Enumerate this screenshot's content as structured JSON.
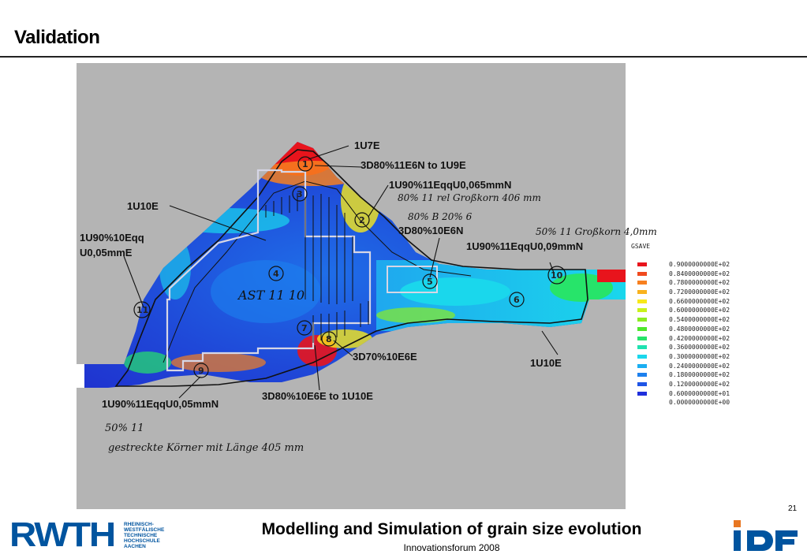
{
  "slide": {
    "title": "Validation",
    "page_number": "21",
    "footer_title": "Modelling and Simulation of grain size evolution",
    "footer_subtitle": "Innovationsforum 2008"
  },
  "logos": {
    "rwth_mark": "RWTH",
    "rwth_lines": [
      "RHEINISCH-",
      "WESTFÄLISCHE",
      "TECHNISCHE",
      "HOCHSCHULE",
      "AACHEN"
    ],
    "ibf_mark": "ibf"
  },
  "figure": {
    "labels": [
      {
        "id": "l1",
        "text": "1U7E"
      },
      {
        "id": "l2",
        "text": "3D80%11E6N to 1U9E"
      },
      {
        "id": "l3",
        "text": "1U90%11EqqU0,065mmN"
      },
      {
        "id": "l4",
        "text": "1U10E"
      },
      {
        "id": "l5",
        "text": "1U90%10Eqq"
      },
      {
        "id": "l6",
        "text": "U0,05mmE"
      },
      {
        "id": "l7",
        "text": "3D80%10E6N"
      },
      {
        "id": "l8",
        "text": "1U90%11EqqU0,09mmN"
      },
      {
        "id": "l9",
        "text": "3D70%10E6E"
      },
      {
        "id": "l10",
        "text": "1U10E"
      },
      {
        "id": "l11",
        "text": "3D80%10E6E to 1U10E"
      },
      {
        "id": "l12",
        "text": "1U90%11EqqU0,05mmN"
      }
    ],
    "handwritten": [
      {
        "id": "h1",
        "text": "80% 11 rel Großkorn 406 mm"
      },
      {
        "id": "h2",
        "text": "80% B 20% 6"
      },
      {
        "id": "h3",
        "text": "50% 11 Großkorn 4,0mm"
      },
      {
        "id": "h4",
        "text": "AST 11 10"
      },
      {
        "id": "h5",
        "text": "50% 11"
      },
      {
        "id": "h6",
        "text": "gestreckte Körner mit Länge 405 mm"
      }
    ],
    "zone_numbers": [
      "1",
      "2",
      "3",
      "4",
      "5",
      "6",
      "7",
      "8",
      "9",
      "10",
      "11"
    ]
  },
  "legend": {
    "title": "GSAVE",
    "items": [
      {
        "value": "0.9000000000E+02",
        "color": "#e8141c"
      },
      {
        "value": "0.8400000000E+02",
        "color": "#f04a1e"
      },
      {
        "value": "0.7800000000E+02",
        "color": "#f7801f"
      },
      {
        "value": "0.7200000000E+02",
        "color": "#f9b21d"
      },
      {
        "value": "0.6600000000E+02",
        "color": "#f7e81a"
      },
      {
        "value": "0.6000000000E+02",
        "color": "#c9f21c"
      },
      {
        "value": "0.5400000000E+02",
        "color": "#8ced22"
      },
      {
        "value": "0.4800000000E+02",
        "color": "#4ee72c"
      },
      {
        "value": "0.4200000000E+02",
        "color": "#27e46a"
      },
      {
        "value": "0.3600000000E+02",
        "color": "#1fe2b0"
      },
      {
        "value": "0.3000000000E+02",
        "color": "#1ad7ec"
      },
      {
        "value": "0.2400000000E+02",
        "color": "#1aaef2"
      },
      {
        "value": "0.1800000000E+02",
        "color": "#1d80ee"
      },
      {
        "value": "0.1200000000E+02",
        "color": "#1f55e6"
      },
      {
        "value": "0.6000000000E+01",
        "color": "#1f2fdc"
      },
      {
        "value": "0.0000000000E+00",
        "color": null
      }
    ]
  }
}
